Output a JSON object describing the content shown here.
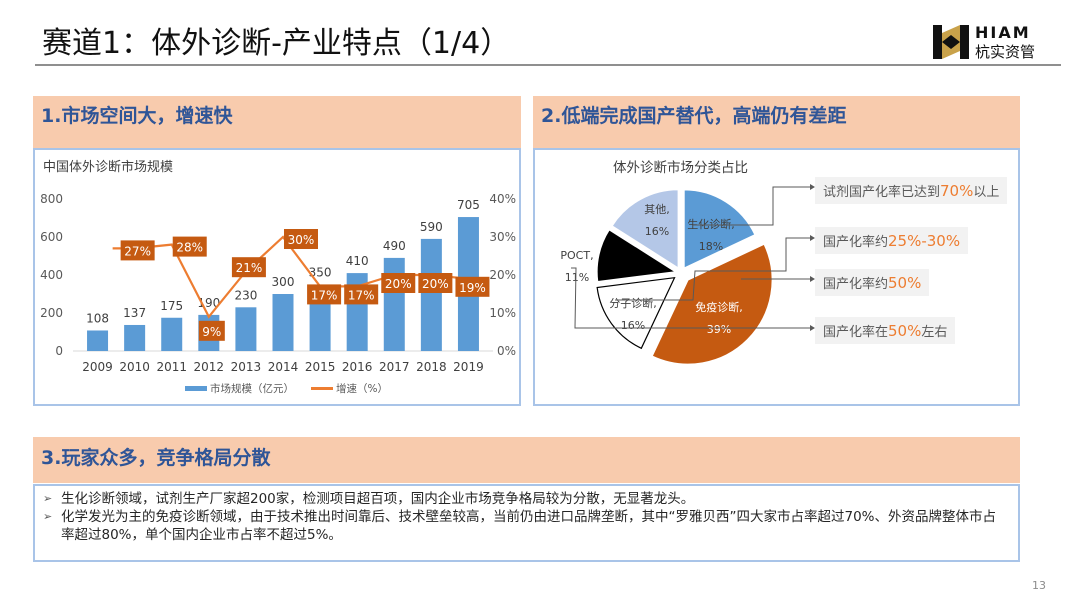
{
  "header": {
    "title": "赛道1：体外诊断-产业特点（1/4）",
    "logo_en": "HIAM",
    "logo_cn": "杭实资管"
  },
  "sections": [
    {
      "heading": "1.市场空间大，增速快"
    },
    {
      "heading": "2.低端完成国产替代，高端仍有差距"
    },
    {
      "heading": "3.玩家众多，竞争格局分散"
    }
  ],
  "colors": {
    "bar": "#5b9bd5",
    "line": "#ed7d31",
    "label_box": "#c55a11",
    "heading_bg": "#f8cbad",
    "heading_text": "#2f5597",
    "pie_biochem": "#5b9bd5",
    "pie_immuno": "#c55a11",
    "pie_molecular": "#ffffff",
    "pie_poct": "#000000",
    "pie_other": "#b4c7e7"
  },
  "chart_data": [
    {
      "type": "bar",
      "title": "中国体外诊断市场规模",
      "categories": [
        "2009",
        "2010",
        "2011",
        "2012",
        "2013",
        "2014",
        "2015",
        "2016",
        "2017",
        "2018",
        "2019"
      ],
      "series": [
        {
          "name": "市场规模（亿元）",
          "kind": "bar",
          "axis": "left",
          "values": [
            108,
            137,
            175,
            190,
            230,
            300,
            350,
            410,
            490,
            590,
            705
          ],
          "labels": [
            "108",
            "137",
            "175",
            "190",
            "230",
            "300",
            "350",
            "410",
            "490",
            "590",
            "705"
          ]
        },
        {
          "name": "增速（%）",
          "kind": "line",
          "axis": "right",
          "values": [
            null,
            27,
            28,
            9,
            21,
            30,
            17,
            17,
            20,
            20,
            19
          ],
          "labels": [
            "",
            "27%",
            "28%",
            "9%",
            "21%",
            "30%",
            "17%",
            "17%",
            "20%",
            "20%",
            "19%"
          ]
        }
      ],
      "y_left": {
        "min": 0,
        "max": 800,
        "ticks": [
          "0",
          "200",
          "400",
          "600",
          "800"
        ]
      },
      "y_right": {
        "min": 0,
        "max": 40,
        "ticks": [
          "0%",
          "10%",
          "20%",
          "30%",
          "40%"
        ]
      },
      "legend": {
        "position": "bottom",
        "items": [
          "市场规模（亿元）",
          "增速（%）"
        ]
      },
      "grid": false
    },
    {
      "type": "pie",
      "title": "体外诊断市场分类占比",
      "slices": [
        {
          "name": "生化诊断",
          "value": 18,
          "label": "生化诊断,",
          "pct": "18%"
        },
        {
          "name": "免疫诊断",
          "value": 39,
          "label": "免疫诊断,",
          "pct": "39%"
        },
        {
          "name": "分子诊断",
          "value": 16,
          "label": "分子诊断,",
          "pct": "16%"
        },
        {
          "name": "POCT",
          "value": 11,
          "label": "POCT,",
          "pct": "11%"
        },
        {
          "name": "其他",
          "value": 16,
          "label": "其他,",
          "pct": "16%"
        }
      ],
      "annotations": [
        {
          "target": "生化诊断",
          "prefix": "试剂国产化率已达到",
          "highlight": "70%",
          "suffix": "以上"
        },
        {
          "target": "分子诊断",
          "prefix": "国产化率约",
          "highlight": "25%-30%",
          "suffix": ""
        },
        {
          "target": "免疫诊断",
          "prefix": "国产化率约",
          "highlight": "50%",
          "suffix": ""
        },
        {
          "target": "POCT",
          "prefix": "国产化率在",
          "highlight": "50%",
          "suffix": "左右"
        }
      ]
    }
  ],
  "bullets": [
    "生化诊断领域，试剂生产厂家超200家，检测项目超百项，国内企业市场竞争格局较为分散，无显著龙头。",
    "化学发光为主的免疫诊断领域，由于技术推出时间靠后、技术壁垒较高，当前仍由进口品牌垄断，其中“罗雅贝西”四大家市占率超过70%、外资品牌整体市占率超过80%，单个国内企业市占率不超过5%。"
  ],
  "footer": {
    "page_number": "13"
  }
}
